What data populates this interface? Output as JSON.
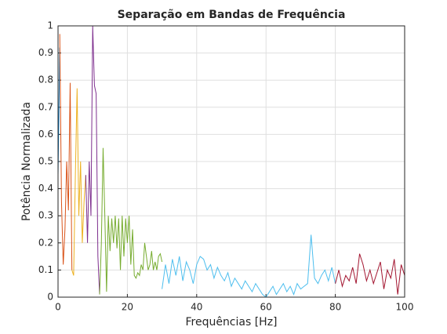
{
  "chart_data": {
    "type": "line",
    "title": "Separação em Bandas de Frequência",
    "xlabel": "Frequências [Hz]",
    "ylabel": "Potência Normalizada",
    "xlim": [
      0,
      100
    ],
    "xticks": [
      0,
      20,
      40,
      60,
      80,
      100
    ],
    "ylim": [
      0,
      1
    ],
    "yticks": [
      0,
      0.1,
      0.2,
      0.3,
      0.4,
      0.5,
      0.6,
      0.7,
      0.8,
      0.9,
      1
    ],
    "grid": true,
    "series": [
      {
        "color": "#0072BD",
        "x": [
          0,
          0.5
        ],
        "values": [
          0.45,
          0.92
        ]
      },
      {
        "color": "#D95319",
        "x": [
          0.5,
          1,
          1.5,
          2,
          2.5,
          3,
          3.5,
          4
        ],
        "values": [
          0.97,
          0.35,
          0.12,
          0.25,
          0.5,
          0.32,
          0.79,
          0.1
        ]
      },
      {
        "color": "#EDB120",
        "x": [
          4,
          4.5,
          5,
          5.5,
          6,
          6.5,
          7,
          7.5,
          8
        ],
        "values": [
          0.1,
          0.08,
          0.45,
          0.77,
          0.3,
          0.5,
          0.2,
          0.35,
          0.45
        ]
      },
      {
        "color": "#7E2F8E",
        "x": [
          8,
          8.5,
          9,
          9.5,
          10,
          10.5,
          11,
          11.5,
          12
        ],
        "values": [
          0.45,
          0.2,
          0.5,
          0.3,
          1.0,
          0.78,
          0.75,
          0.15,
          0.01
        ]
      },
      {
        "color": "#77AC30",
        "x": [
          12,
          12.5,
          13,
          13.5,
          14,
          14.5,
          15,
          15.5,
          16,
          16.5,
          17,
          17.5,
          18,
          18.5,
          19,
          19.5,
          20,
          20.5,
          21,
          21.5,
          22,
          22.5,
          23,
          23.5,
          24,
          24.5,
          25,
          25.5,
          26,
          26.5,
          27,
          27.5,
          28,
          28.5,
          29,
          29.5,
          30
        ],
        "values": [
          0.01,
          0.2,
          0.55,
          0.3,
          0.02,
          0.3,
          0.17,
          0.29,
          0.2,
          0.3,
          0.18,
          0.29,
          0.1,
          0.3,
          0.15,
          0.29,
          0.2,
          0.3,
          0.12,
          0.25,
          0.08,
          0.07,
          0.09,
          0.08,
          0.12,
          0.1,
          0.2,
          0.15,
          0.1,
          0.12,
          0.17,
          0.1,
          0.13,
          0.1,
          0.15,
          0.16,
          0.13
        ]
      },
      {
        "color": "#4DBEEE",
        "x": [
          30,
          31,
          32,
          33,
          34,
          35,
          36,
          37,
          38,
          39,
          40,
          41,
          42,
          43,
          44,
          45,
          46,
          47,
          48,
          49,
          50,
          51,
          52,
          53,
          54,
          55,
          56,
          57,
          58,
          59,
          60,
          61,
          62,
          63,
          64,
          65,
          66,
          67,
          68,
          69,
          70,
          71,
          72,
          73,
          74,
          75,
          76,
          77,
          78,
          79,
          80
        ],
        "values": [
          0.03,
          0.12,
          0.05,
          0.14,
          0.08,
          0.15,
          0.06,
          0.13,
          0.1,
          0.05,
          0.12,
          0.15,
          0.14,
          0.1,
          0.12,
          0.07,
          0.11,
          0.08,
          0.06,
          0.09,
          0.04,
          0.07,
          0.05,
          0.03,
          0.06,
          0.04,
          0.02,
          0.05,
          0.03,
          0.01,
          0.0,
          0.02,
          0.04,
          0.01,
          0.03,
          0.05,
          0.02,
          0.04,
          0.01,
          0.05,
          0.03,
          0.04,
          0.05,
          0.23,
          0.07,
          0.05,
          0.08,
          0.1,
          0.06,
          0.11,
          0.05
        ]
      },
      {
        "color": "#A2142F",
        "x": [
          80,
          81,
          82,
          83,
          84,
          85,
          86,
          87,
          88,
          89,
          90,
          91,
          92,
          93,
          94,
          95,
          96,
          97,
          98,
          99,
          100
        ],
        "values": [
          0.05,
          0.1,
          0.04,
          0.08,
          0.06,
          0.11,
          0.05,
          0.16,
          0.12,
          0.06,
          0.1,
          0.05,
          0.09,
          0.13,
          0.03,
          0.1,
          0.07,
          0.14,
          0.01,
          0.12,
          0.08
        ]
      }
    ]
  }
}
